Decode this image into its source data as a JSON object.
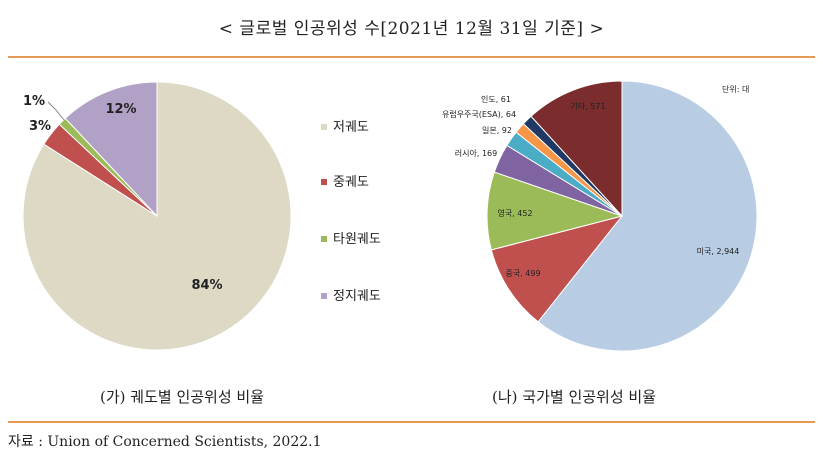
{
  "title": "< 글로벌 인공위성 수[2021년 12월 31일 기준] >",
  "source": "자료 : Union of Concerned Scientists, 2022.1",
  "chart_data": [
    {
      "type": "pie",
      "caption": "(가) 궤도별 인공위성 비율",
      "labels": [
        "저궤도",
        "중궤도",
        "타원궤도",
        "정지궤도"
      ],
      "values": [
        84,
        3,
        1,
        12
      ],
      "value_labels": [
        "84%",
        "3%",
        "1%",
        "12%"
      ],
      "colors": [
        "#ddd9c4",
        "#c0504d",
        "#9bbb59",
        "#b2a1c7"
      ],
      "legend": "right"
    },
    {
      "type": "pie",
      "caption": "(나) 국가별 인공위성 비율",
      "unit": "단위: 대",
      "labels": [
        "미국",
        "중국",
        "영국",
        "러시아",
        "일본",
        "유럽우주국(ESA)",
        "인도",
        "기타"
      ],
      "values": [
        2944,
        499,
        452,
        169,
        92,
        64,
        61,
        571
      ],
      "value_labels": [
        "미국, 2,944",
        "중국, 499",
        "영국, 452",
        "러시아, 169",
        "일본, 92",
        "유럽우주국(ESA), 64",
        "인도, 61",
        "기타, 571"
      ],
      "colors": [
        "#b8cce4",
        "#c0504d",
        "#9bbb59",
        "#8064a2",
        "#4bacc6",
        "#f79646",
        "#1f3864",
        "#7b2c2c"
      ]
    }
  ]
}
